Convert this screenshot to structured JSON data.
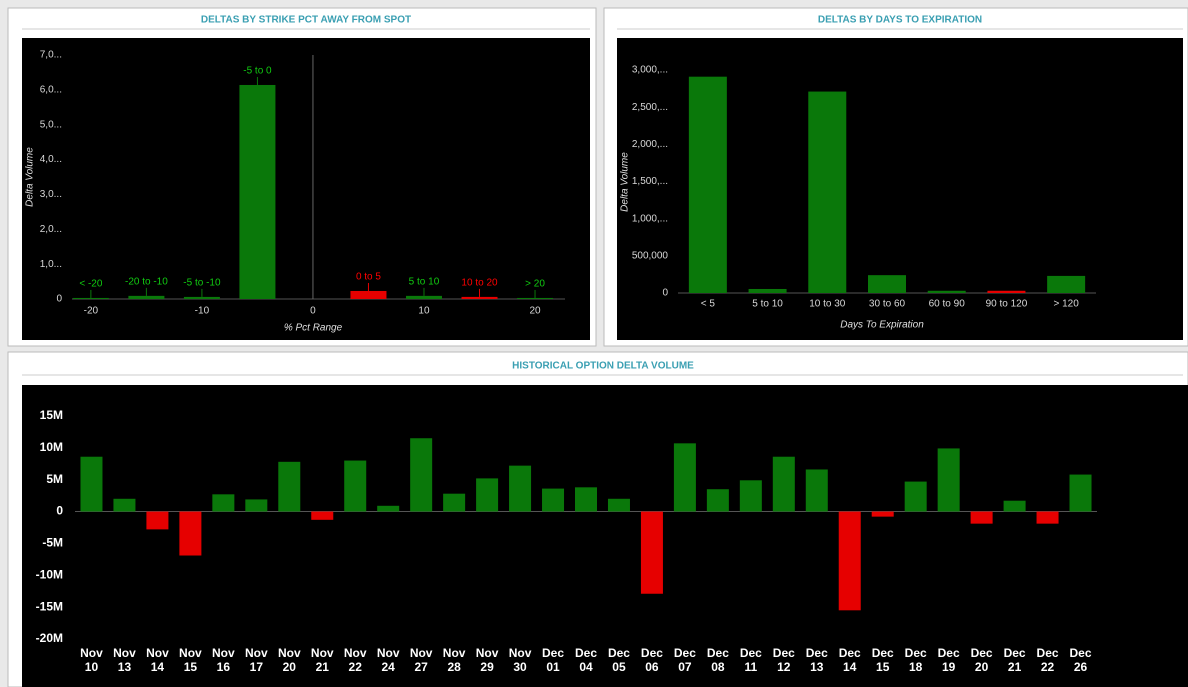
{
  "chart_data": [
    {
      "type": "bar",
      "title": "DELTAS BY STRIKE PCT AWAY FROM SPOT",
      "x_label": "% Pct Range",
      "y_label": "Delta Volume",
      "categories": [
        "< -20",
        "-20 to -10",
        "-5 to -10",
        "-5 to 0",
        "0 to 5",
        "5 to 10",
        "10 to 20",
        "> 20"
      ],
      "x": [
        -20,
        -15,
        -10,
        -5,
        5,
        10,
        15,
        20
      ],
      "values": [
        30000,
        90000,
        60000,
        6140000,
        230000,
        90000,
        60000,
        30000
      ],
      "colors": [
        "#0a780a",
        "#0a780a",
        "#0a780a",
        "#0a780a",
        "#e60000",
        "#0a780a",
        "#e60000",
        "#0a780a"
      ],
      "xlim": [
        -21.7,
        22.7
      ],
      "xticks": [
        -20,
        -10,
        0,
        10,
        20
      ],
      "ylim": [
        0,
        7000000
      ],
      "yticks": [
        0,
        {
          "value": 1000000,
          "label": "1,0..."
        },
        {
          "value": 2000000,
          "label": "2,0..."
        },
        {
          "value": 3000000,
          "label": "3,0..."
        },
        {
          "value": 4000000,
          "label": "4,0..."
        },
        {
          "value": 5000000,
          "label": "5,0..."
        },
        {
          "value": 6000000,
          "label": "6,0..."
        },
        {
          "value": 7000000,
          "label": "7,0..."
        }
      ]
    },
    {
      "type": "bar",
      "title": "DELTAS BY DAYS TO EXPIRATION",
      "x_label": "Days To Expiration",
      "y_label": "Delta Volume",
      "categories": [
        "< 5",
        "5 to 10",
        "10 to 30",
        "30 to 60",
        "60 to 90",
        "90 to 120",
        "> 120"
      ],
      "values": [
        2910000,
        54000,
        2710000,
        240000,
        30000,
        30000,
        230000
      ],
      "colors": [
        "#0a780a",
        "#0a780a",
        "#0a780a",
        "#0a780a",
        "#0a780a",
        "#e60000",
        "#0a780a"
      ],
      "ylim": [
        0,
        3000000
      ],
      "yticks": [
        0,
        {
          "value": 500000,
          "label": "500,000"
        },
        {
          "value": 1000000,
          "label": "1,000,..."
        },
        {
          "value": 1500000,
          "label": "1,500,..."
        },
        {
          "value": 2000000,
          "label": "2,000,..."
        },
        {
          "value": 2500000,
          "label": "2,500,..."
        },
        {
          "value": 3000000,
          "label": "3,000,..."
        }
      ]
    },
    {
      "type": "bar",
      "title": "HISTORICAL OPTION DELTA VOLUME",
      "categories": [
        "Nov 10",
        "Nov 13",
        "Nov 14",
        "Nov 15",
        "Nov 16",
        "Nov 17",
        "Nov 20",
        "Nov 21",
        "Nov 22",
        "Nov 24",
        "Nov 27",
        "Nov 28",
        "Nov 29",
        "Nov 30",
        "Dec 01",
        "Dec 04",
        "Dec 05",
        "Dec 06",
        "Dec 07",
        "Dec 08",
        "Dec 11",
        "Dec 12",
        "Dec 13",
        "Dec 14",
        "Dec 15",
        "Dec 18",
        "Dec 19",
        "Dec 20",
        "Dec 21",
        "Dec 22",
        "Dec 26"
      ],
      "values": [
        8600000,
        2000000,
        -2800000,
        -6900000,
        2700000,
        1900000,
        7800000,
        -1300000,
        8000000,
        900000,
        11500000,
        2800000,
        5200000,
        7200000,
        3600000,
        3800000,
        2000000,
        -12900000,
        10700000,
        3500000,
        4900000,
        8600000,
        6600000,
        -15500000,
        -800000,
        4700000,
        9900000,
        -1900000,
        1700000,
        -1900000,
        5800000
      ],
      "color": "#0a780a",
      "negative_color": "#e60000",
      "ylim": [
        -20000000,
        17500000
      ],
      "yticks": [
        {
          "value": -20000000,
          "label": "-20M"
        },
        {
          "value": -15000000,
          "label": "-15M"
        },
        {
          "value": -10000000,
          "label": "-10M"
        },
        {
          "value": -5000000,
          "label": "-5M"
        },
        0,
        {
          "value": 5000000,
          "label": "5M"
        },
        {
          "value": 10000000,
          "label": "10M"
        },
        {
          "value": 15000000,
          "label": "15M"
        }
      ]
    }
  ]
}
